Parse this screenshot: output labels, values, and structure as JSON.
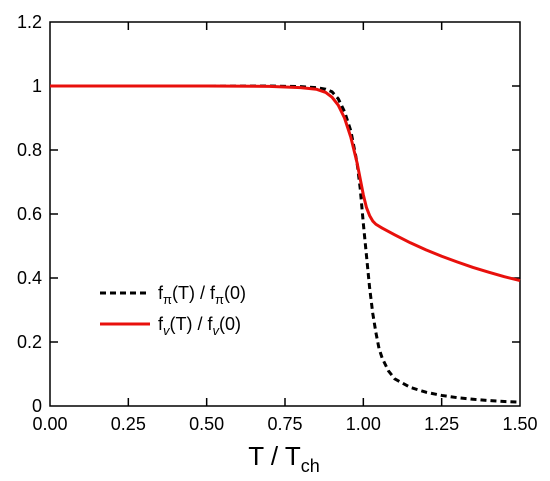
{
  "chart_data": {
    "type": "line",
    "xlabel": "T / T",
    "xlabel_sub": "ch",
    "ylabel": "",
    "xlim": [
      0,
      1.5
    ],
    "ylim": [
      0,
      1.2
    ],
    "x_ticks": [
      "0.00",
      "0.25",
      "0.50",
      "0.75",
      "1.00",
      "1.25",
      "1.50"
    ],
    "x_tick_values": [
      0,
      0.25,
      0.5,
      0.75,
      1.0,
      1.25,
      1.5
    ],
    "y_ticks": [
      "0",
      "0.2",
      "0.4",
      "0.6",
      "0.8",
      "1",
      "1.2"
    ],
    "y_tick_values": [
      0,
      0.2,
      0.4,
      0.6,
      0.8,
      1.0,
      1.2
    ],
    "grid": false,
    "legend_position": "lower-left",
    "series": [
      {
        "name": "f_π(T) / f_π(0)",
        "legend_parts": [
          "f",
          "π",
          "(T) / f",
          "π",
          "(0)"
        ],
        "style": "dashed",
        "color": "#000000",
        "x": [
          0,
          0.25,
          0.5,
          0.7,
          0.8,
          0.85,
          0.88,
          0.9,
          0.92,
          0.94,
          0.96,
          0.98,
          0.99,
          1.0,
          1.01,
          1.02,
          1.03,
          1.04,
          1.05,
          1.06,
          1.08,
          1.1,
          1.15,
          1.2,
          1.25,
          1.3,
          1.35,
          1.4,
          1.45,
          1.5
        ],
        "values": [
          1.0,
          1.0,
          1.0,
          1.0,
          0.998,
          0.995,
          0.99,
          0.982,
          0.96,
          0.92,
          0.86,
          0.76,
          0.68,
          0.57,
          0.47,
          0.37,
          0.29,
          0.23,
          0.18,
          0.15,
          0.11,
          0.085,
          0.058,
          0.043,
          0.033,
          0.026,
          0.021,
          0.017,
          0.014,
          0.012
        ]
      },
      {
        "name": "f_v(T) / f_v(0)",
        "legend_parts": [
          "f",
          "v",
          "(T) / f",
          "v",
          "(0)"
        ],
        "style": "solid",
        "color": "#e8100c",
        "x": [
          0,
          0.25,
          0.5,
          0.7,
          0.8,
          0.85,
          0.88,
          0.9,
          0.92,
          0.94,
          0.96,
          0.98,
          1.0,
          1.01,
          1.02,
          1.03,
          1.04,
          1.06,
          1.1,
          1.15,
          1.2,
          1.25,
          1.3,
          1.35,
          1.4,
          1.45,
          1.5
        ],
        "values": [
          1.0,
          1.0,
          1.0,
          0.999,
          0.995,
          0.99,
          0.98,
          0.965,
          0.94,
          0.9,
          0.84,
          0.76,
          0.66,
          0.62,
          0.595,
          0.578,
          0.568,
          0.556,
          0.535,
          0.51,
          0.488,
          0.468,
          0.45,
          0.433,
          0.418,
          0.404,
          0.392
        ]
      }
    ]
  }
}
